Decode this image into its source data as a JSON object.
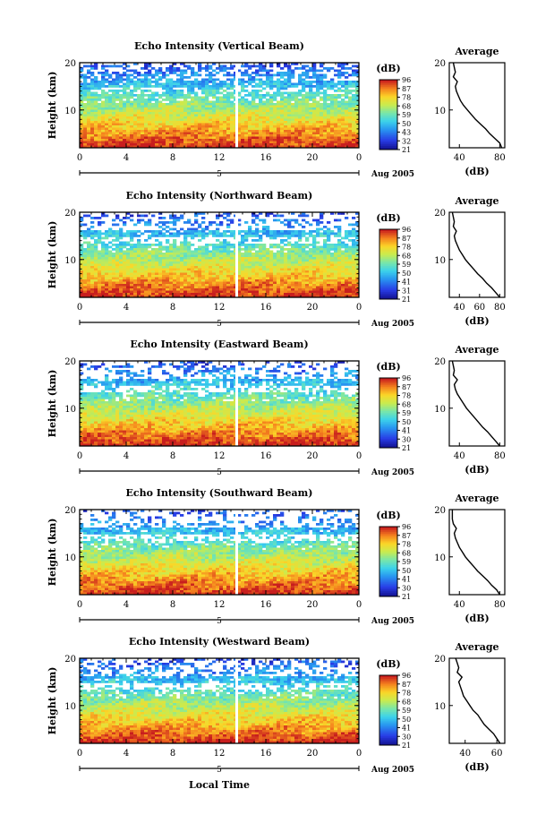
{
  "x_axis_label": "Local Time",
  "colorbar_ticks": [
    "96",
    "87",
    "78",
    "68",
    "59",
    "50",
    "41",
    "31",
    "21"
  ],
  "chart_data": [
    {
      "type": "heatmap",
      "title": "Echo Intensity (Vertical Beam)",
      "ylabel": "Height (km)",
      "x_ticks": [
        "0",
        "4",
        "8",
        "12",
        "16",
        "20",
        "0"
      ],
      "y_ticks": [
        "20",
        "10"
      ],
      "xlim": [
        0,
        24
      ],
      "ylim": [
        2,
        20
      ],
      "date_marker": "5",
      "date_label": "Aug 2005",
      "colorbar": {
        "unit": "(dB)",
        "ticks": [
          "96",
          "87",
          "78",
          "68",
          "59",
          "50",
          "43",
          "32",
          "21"
        ],
        "range": [
          21,
          96
        ]
      },
      "gap_time": 13.5,
      "noise_top_km": 19.5,
      "bottom_max_db": 96,
      "profile": {
        "title": "Average",
        "xlabel": "(dB)",
        "x_ticks": [
          "40",
          "80"
        ],
        "y_ticks": [
          "20",
          "10"
        ],
        "xlim": [
          30,
          85
        ],
        "ylim": [
          2,
          20
        ],
        "height_km": [
          2,
          3,
          4,
          5,
          6,
          7,
          8,
          9,
          10,
          11,
          12,
          13,
          14,
          15,
          16,
          17,
          18,
          19,
          20
        ],
        "db": [
          82,
          80,
          75,
          70,
          66,
          61,
          56,
          52,
          48,
          44,
          41,
          39,
          37,
          36,
          38,
          34,
          36,
          35,
          34
        ]
      }
    },
    {
      "type": "heatmap",
      "title": "Echo Intensity (Northward Beam)",
      "ylabel": "Height (km)",
      "x_ticks": [
        "0",
        "4",
        "8",
        "12",
        "16",
        "20",
        "0"
      ],
      "y_ticks": [
        "20",
        "10"
      ],
      "xlim": [
        0,
        24
      ],
      "ylim": [
        2,
        20
      ],
      "date_marker": "5",
      "date_label": "Aug 2005",
      "colorbar": {
        "unit": "(dB)",
        "ticks": [
          "96",
          "87",
          "78",
          "68",
          "59",
          "50",
          "41",
          "31",
          "21"
        ],
        "range": [
          21,
          96
        ]
      },
      "gap_time": 13.5,
      "noise_top_km": 18.5,
      "bottom_max_db": 85,
      "profile": {
        "title": "Average",
        "xlabel": "(dB)",
        "x_ticks": [
          "40",
          "60",
          "80"
        ],
        "y_ticks": [
          "20",
          "10"
        ],
        "xlim": [
          30,
          85
        ],
        "ylim": [
          2,
          20
        ],
        "height_km": [
          2,
          3,
          4,
          5,
          6,
          7,
          8,
          9,
          10,
          11,
          12,
          13,
          14,
          15,
          16,
          17,
          18,
          19,
          20
        ],
        "db": [
          80,
          76,
          72,
          67,
          63,
          58,
          54,
          50,
          46,
          43,
          40,
          38,
          36,
          35,
          37,
          34,
          35,
          34,
          33
        ]
      }
    },
    {
      "type": "heatmap",
      "title": "Echo Intensity (Eastward Beam)",
      "ylabel": "Height (km)",
      "x_ticks": [
        "0",
        "4",
        "8",
        "12",
        "16",
        "20",
        "0"
      ],
      "y_ticks": [
        "20",
        "10"
      ],
      "xlim": [
        0,
        24
      ],
      "ylim": [
        2,
        20
      ],
      "date_marker": "5",
      "date_label": "Aug 2005",
      "colorbar": {
        "unit": "(dB)",
        "ticks": [
          "96",
          "87",
          "78",
          "68",
          "59",
          "50",
          "41",
          "30",
          "21"
        ],
        "range": [
          21,
          96
        ]
      },
      "gap_time": 13.5,
      "noise_top_km": 19.0,
      "bottom_max_db": 87,
      "profile": {
        "title": "Average",
        "xlabel": "(dB)",
        "x_ticks": [
          "40",
          "80"
        ],
        "y_ticks": [
          "20",
          "10"
        ],
        "xlim": [
          30,
          85
        ],
        "ylim": [
          2,
          20
        ],
        "height_km": [
          2,
          3,
          4,
          5,
          6,
          7,
          8,
          9,
          10,
          11,
          12,
          13,
          14,
          15,
          16,
          17,
          18,
          19,
          20
        ],
        "db": [
          80,
          76,
          72,
          68,
          63,
          59,
          55,
          51,
          47,
          44,
          41,
          38,
          36,
          35,
          38,
          34,
          35,
          34,
          33
        ]
      }
    },
    {
      "type": "heatmap",
      "title": "Echo Intensity (Southward Beam)",
      "ylabel": "Height (km)",
      "x_ticks": [
        "0",
        "4",
        "8",
        "12",
        "16",
        "20",
        "0"
      ],
      "y_ticks": [
        "20",
        "10"
      ],
      "xlim": [
        0,
        24
      ],
      "ylim": [
        2,
        20
      ],
      "date_marker": "5",
      "date_label": "Aug 2005",
      "colorbar": {
        "unit": "(dB)",
        "ticks": [
          "96",
          "87",
          "78",
          "68",
          "59",
          "50",
          "41",
          "30",
          "21"
        ],
        "range": [
          21,
          96
        ]
      },
      "gap_time": 13.5,
      "noise_top_km": 17.0,
      "bottom_max_db": 85,
      "profile": {
        "title": "Average",
        "xlabel": "(dB)",
        "x_ticks": [
          "40",
          "80"
        ],
        "y_ticks": [
          "20",
          "10"
        ],
        "xlim": [
          30,
          85
        ],
        "ylim": [
          2,
          20
        ],
        "height_km": [
          2,
          3,
          4,
          5,
          6,
          7,
          8,
          9,
          10,
          11,
          12,
          13,
          14,
          15,
          16,
          17,
          18,
          19,
          20
        ],
        "db": [
          80,
          77,
          72,
          68,
          63,
          58,
          54,
          50,
          46,
          43,
          40,
          38,
          36,
          35,
          37,
          34,
          33,
          33,
          33
        ]
      }
    },
    {
      "type": "heatmap",
      "title": "Echo Intensity (Westward Beam)",
      "ylabel": "Height (km)",
      "x_ticks": [
        "0",
        "4",
        "8",
        "12",
        "16",
        "20",
        "0"
      ],
      "y_ticks": [
        "20",
        "10"
      ],
      "xlim": [
        0,
        24
      ],
      "ylim": [
        2,
        20
      ],
      "date_marker": "5",
      "date_label": "Aug 2005",
      "colorbar": {
        "unit": "(dB)",
        "ticks": [
          "96",
          "87",
          "78",
          "68",
          "59",
          "50",
          "41",
          "30",
          "21"
        ],
        "range": [
          21,
          96
        ]
      },
      "gap_time": 13.5,
      "noise_top_km": 19.5,
      "bottom_max_db": 87,
      "profile": {
        "title": "Average",
        "xlabel": "(dB)",
        "x_ticks": [
          "40",
          "60"
        ],
        "y_ticks": [
          "20",
          "10"
        ],
        "xlim": [
          30,
          65
        ],
        "ylim": [
          2,
          20
        ],
        "height_km": [
          2,
          3,
          4,
          5,
          6,
          7,
          8,
          9,
          10,
          11,
          12,
          13,
          14,
          15,
          16,
          17,
          18,
          19,
          20
        ],
        "db": [
          62,
          60,
          58,
          55,
          52,
          50,
          48,
          45,
          43,
          41,
          39,
          38,
          37,
          36,
          38,
          35,
          36,
          35,
          34
        ]
      }
    }
  ]
}
